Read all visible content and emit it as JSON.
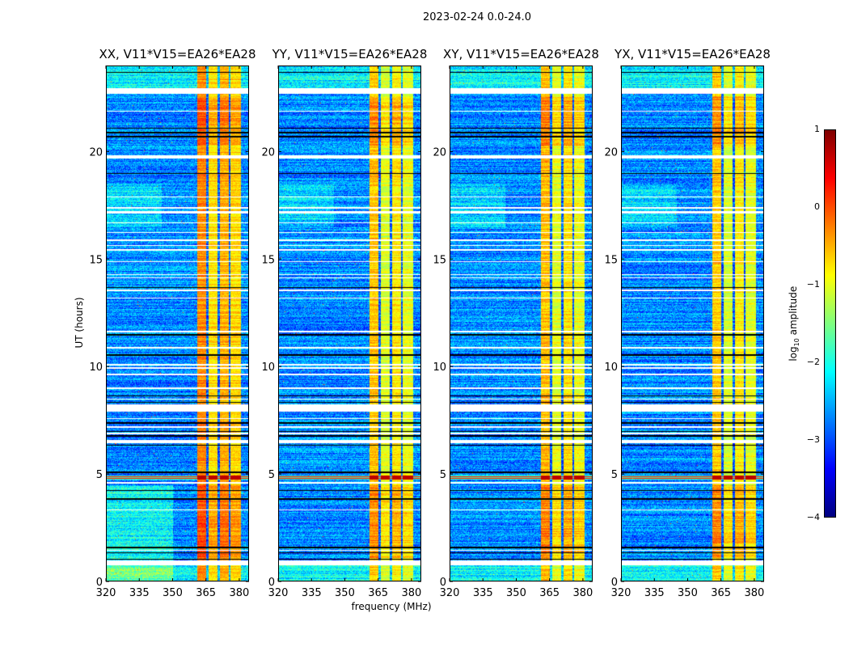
{
  "suptitle": "2023-02-24 0.0-24.0",
  "chart_data": {
    "type": "heatmap",
    "xlabel": "frequency (MHz)",
    "ylabel": "UT (hours)",
    "xlim": [
      320,
      384.4
    ],
    "ylim": [
      0,
      24
    ],
    "xticks": [
      320,
      335,
      350,
      365,
      380
    ],
    "yticks": [
      0,
      5,
      10,
      15,
      20
    ],
    "colorbar": {
      "label_main": "log",
      "label_sub": "10",
      "label_rest": " amplitude",
      "range": [
        -4,
        1
      ],
      "ticks": [
        1,
        0,
        -1,
        -2,
        -3,
        -4
      ],
      "tick_labels": [
        "1",
        "0",
        "−1",
        "−2",
        "−3",
        "−4"
      ],
      "cmap": "jet"
    },
    "rfi_band_mhz": [
      361,
      380.5
    ],
    "rfi_dividers_mhz": [
      365.5,
      370.5,
      375.5
    ],
    "background_log_amp": -2.7,
    "flagged_hours": [
      [
        22.7,
        22.95
      ],
      [
        19.7,
        19.85
      ],
      [
        7.9,
        8.25
      ],
      [
        6.45,
        6.62
      ],
      [
        0.78,
        1.0
      ]
    ],
    "thin_flag_hours": [
      21.9,
      17.9,
      17.4,
      17.2,
      17.15,
      16.7,
      16.25,
      15.9,
      15.65,
      15.45,
      14.9,
      14.3,
      14.15,
      13.55,
      13.2,
      11.65,
      10.9,
      10.1,
      9.95,
      9.65,
      9.0,
      8.5,
      7.6,
      7.2,
      6.9,
      4.6,
      3.35,
      1.47
    ],
    "dropout_hours": [
      23.7,
      21.1,
      20.9,
      20.7,
      19.0,
      13.7,
      11.5,
      10.55,
      8.65,
      8.35,
      7.4,
      7.0,
      6.8,
      6.35,
      5.1,
      4.25,
      3.85,
      1.6,
      1.35,
      1.05
    ],
    "strong_event_hours": [
      4.74,
      4.96
    ],
    "panels": [
      {
        "title": "XX, V11*V15=EA26*EA28",
        "rfi_log_amp": -0.45
      },
      {
        "title": "YY, V11*V15=EA26*EA28",
        "rfi_log_amp": -0.75
      },
      {
        "title": "XY, V11*V15=EA26*EA28",
        "rfi_log_amp": -0.7
      },
      {
        "title": "YX, V11*V15=EA26*EA28",
        "rfi_log_amp": -0.75
      }
    ]
  }
}
